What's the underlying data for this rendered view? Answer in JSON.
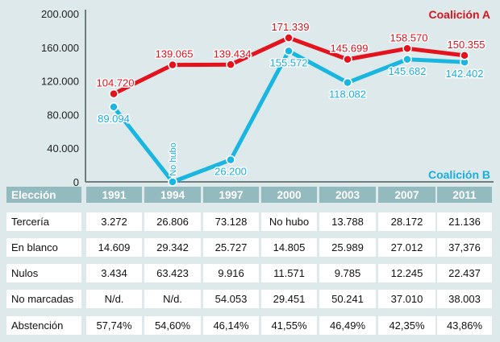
{
  "colors": {
    "coalicion_a": "#e3121c",
    "coalicion_b": "#1ab6e2",
    "header_bg": "#93babe",
    "background": "#dde9ea"
  },
  "chart_data": {
    "type": "line",
    "x": [
      "1991",
      "1994",
      "1997",
      "2000",
      "2003",
      "2007",
      "2011"
    ],
    "ylim": [
      0,
      200000
    ],
    "yticks": [
      0,
      40000,
      80000,
      120000,
      160000,
      200000
    ],
    "ytick_labels": [
      "0",
      "40.000",
      "80.000",
      "120.000",
      "160.000",
      "200.000"
    ],
    "grid": false,
    "series": [
      {
        "name": "Coalición A",
        "legend_position": "top-right",
        "values": [
          104720,
          139065,
          139434,
          171339,
          145699,
          158570,
          150355
        ],
        "labels": [
          "104.720",
          "139.065",
          "139.434",
          "171.339",
          "145.699",
          "158.570",
          "150.355"
        ]
      },
      {
        "name": "Coalición B",
        "legend_position": "bottom-right",
        "values": [
          89094,
          0,
          26200,
          155572,
          118082,
          145682,
          142402
        ],
        "labels": [
          "89.094",
          "No hubo",
          "26.200",
          "155.572",
          "118.082",
          "145.682",
          "142.402"
        ]
      }
    ]
  },
  "table": {
    "header": [
      "Elección",
      "1991",
      "1994",
      "1997",
      "2000",
      "2003",
      "2007",
      "2011"
    ],
    "rows": [
      [
        "Tercería",
        "3.272",
        "26.806",
        "73.128",
        "No hubo",
        "13.788",
        "28.172",
        "21.136"
      ],
      [
        "En blanco",
        "14.609",
        "29.342",
        "25.727",
        "14.805",
        "25.989",
        "27.012",
        "37,376"
      ],
      [
        "Nulos",
        "3.434",
        "63.423",
        "9.916",
        "11.571",
        "9.785",
        "12.245",
        "22.437"
      ],
      [
        "No marcadas",
        "N/d.",
        "N/d.",
        "54.053",
        "29.451",
        "50.241",
        "37.010",
        "38.003"
      ],
      [
        "Abstención",
        "57,74%",
        "54,60%",
        "46,14%",
        "41,55%",
        "46,49%",
        "42,35%",
        "43,86%"
      ]
    ]
  }
}
